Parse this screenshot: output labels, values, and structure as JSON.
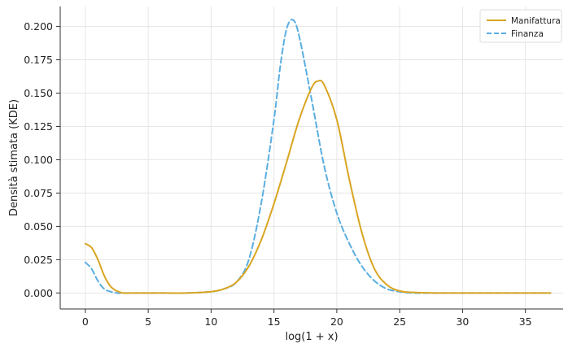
{
  "chart_data": {
    "type": "line",
    "title": "",
    "xlabel": "log(1 + x)",
    "ylabel": "Densità stimata (KDE)",
    "xlim": [
      -2,
      38
    ],
    "ylim": [
      -0.012,
      0.215
    ],
    "xticks": [
      0,
      5,
      10,
      15,
      20,
      25,
      30,
      35
    ],
    "yticks": [
      0.0,
      0.025,
      0.05,
      0.075,
      0.1,
      0.125,
      0.15,
      0.175,
      0.2
    ],
    "ytick_labels": [
      "0.000",
      "0.025",
      "0.050",
      "0.075",
      "0.100",
      "0.125",
      "0.150",
      "0.175",
      "0.200"
    ],
    "grid": true,
    "legend_position": "top-right",
    "series": [
      {
        "name": "Manifattura",
        "color": "#d9a521",
        "style": "solid",
        "x": [
          0,
          0.5,
          1,
          1.5,
          2,
          2.5,
          3,
          4,
          5,
          6,
          8,
          10,
          11,
          12,
          13,
          14,
          15,
          16,
          17,
          18,
          18.5,
          19,
          20,
          21,
          22,
          23,
          24,
          25,
          26,
          28,
          30,
          35,
          37
        ],
        "y": [
          0.037,
          0.034,
          0.025,
          0.013,
          0.005,
          0.0015,
          0.0,
          0.0,
          0.0,
          0.0,
          0.0,
          0.001,
          0.003,
          0.008,
          0.02,
          0.04,
          0.067,
          0.098,
          0.13,
          0.154,
          0.159,
          0.156,
          0.13,
          0.085,
          0.045,
          0.018,
          0.006,
          0.0015,
          0.0005,
          0.0,
          0.0,
          0.0,
          0.0
        ]
      },
      {
        "name": "Finanza",
        "color": "#5aaee0",
        "style": "dashed",
        "x": [
          0,
          0.5,
          1,
          1.5,
          2,
          2.5,
          3,
          4,
          5,
          8,
          10,
          11,
          12,
          13,
          14,
          15,
          15.5,
          16,
          16.5,
          17,
          18,
          19,
          20,
          21,
          22,
          23,
          24,
          25,
          26,
          28,
          30,
          35,
          37
        ],
        "y": [
          0.023,
          0.018,
          0.009,
          0.003,
          0.001,
          0.0,
          0.0,
          0.0,
          0.0,
          0.0,
          0.001,
          0.003,
          0.008,
          0.025,
          0.068,
          0.13,
          0.17,
          0.198,
          0.205,
          0.193,
          0.145,
          0.095,
          0.06,
          0.037,
          0.02,
          0.009,
          0.003,
          0.001,
          0.0,
          0.0,
          0.0,
          0.0,
          0.0
        ]
      }
    ]
  }
}
